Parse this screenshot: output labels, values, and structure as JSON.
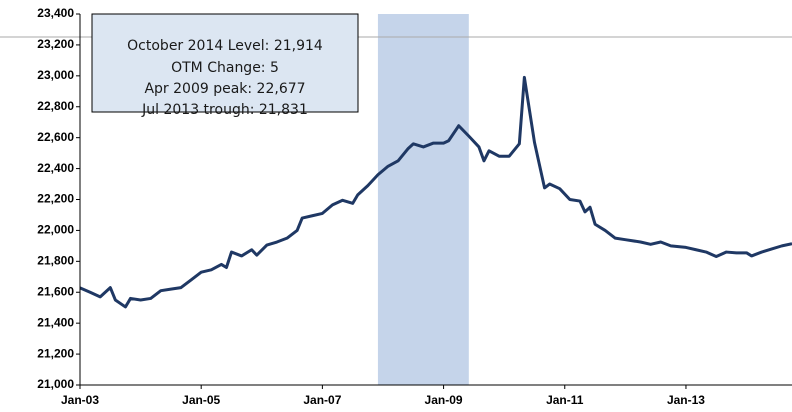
{
  "chart_data": {
    "type": "line",
    "annotations": [
      "October 2014 Level: 21,914",
      "OTM Change: 5",
      "Apr 2009 peak: 22,677",
      "Jul 2013 trough: 21,831"
    ],
    "x": [
      "2003-01",
      "2003-03",
      "2003-05",
      "2003-07",
      "2003-08",
      "2003-10",
      "2003-11",
      "2004-01",
      "2004-03",
      "2004-05",
      "2004-07",
      "2004-09",
      "2004-11",
      "2005-01",
      "2005-03",
      "2005-05",
      "2005-06",
      "2005-07",
      "2005-09",
      "2005-11",
      "2005-12",
      "2006-02",
      "2006-04",
      "2006-06",
      "2006-08",
      "2006-09",
      "2006-11",
      "2007-01",
      "2007-03",
      "2007-05",
      "2007-07",
      "2007-08",
      "2007-10",
      "2007-12",
      "2008-02",
      "2008-04",
      "2008-06",
      "2008-07",
      "2008-09",
      "2008-11",
      "2009-01",
      "2009-02",
      "2009-04",
      "2009-06",
      "2009-08",
      "2009-09",
      "2009-10",
      "2009-12",
      "2010-02",
      "2010-04",
      "2010-05",
      "2010-06",
      "2010-07",
      "2010-09",
      "2010-10",
      "2010-12",
      "2011-02",
      "2011-04",
      "2011-05",
      "2011-06",
      "2011-07",
      "2011-09",
      "2011-11",
      "2012-01",
      "2012-04",
      "2012-06",
      "2012-08",
      "2012-10",
      "2013-01",
      "2013-03",
      "2013-05",
      "2013-07",
      "2013-09",
      "2013-11",
      "2014-01",
      "2014-02",
      "2014-04",
      "2014-06",
      "2014-08",
      "2014-10"
    ],
    "series": [
      {
        "name": "Level",
        "color": "#1f3864",
        "values": [
          21628,
          21600,
          21570,
          21630,
          21550,
          21505,
          21560,
          21550,
          21560,
          21610,
          21620,
          21630,
          21680,
          21730,
          21745,
          21780,
          21760,
          21860,
          21835,
          21875,
          21840,
          21905,
          21925,
          21950,
          22000,
          22080,
          22095,
          22110,
          22165,
          22195,
          22175,
          22230,
          22290,
          22360,
          22415,
          22450,
          22530,
          22560,
          22540,
          22565,
          22565,
          22580,
          22677,
          22610,
          22540,
          22450,
          22515,
          22480,
          22480,
          22560,
          22990,
          22780,
          22570,
          22275,
          22300,
          22270,
          22200,
          22190,
          22120,
          22150,
          22040,
          22000,
          21950,
          21940,
          21925,
          21910,
          21925,
          21900,
          21890,
          21875,
          21860,
          21831,
          21860,
          21855,
          21855,
          21835,
          21860,
          21880,
          21900,
          21914
        ]
      }
    ],
    "shaded": [
      "2007-12",
      "2009-06"
    ],
    "shade_color": "#c5d4ea",
    "xlim": [
      "2003-01",
      "2014-10"
    ],
    "xticks": [
      {
        "value": "2003-01",
        "label": "Jan-03"
      },
      {
        "value": "2005-01",
        "label": "Jan-05"
      },
      {
        "value": "2007-01",
        "label": "Jan-07"
      },
      {
        "value": "2009-01",
        "label": "Jan-09"
      },
      {
        "value": "2011-01",
        "label": "Jan-11"
      },
      {
        "value": "2013-01",
        "label": "Jan-13"
      }
    ],
    "ylim": [
      21000,
      23400
    ],
    "yticks": [
      {
        "value": 21000,
        "label": "21,000"
      },
      {
        "value": 21200,
        "label": "21,200"
      },
      {
        "value": 21400,
        "label": "21,400"
      },
      {
        "value": 21600,
        "label": "21,600"
      },
      {
        "value": 21800,
        "label": "21,800"
      },
      {
        "value": 22000,
        "label": "22,000"
      },
      {
        "value": 22200,
        "label": "22,200"
      },
      {
        "value": 22400,
        "label": "22,400"
      },
      {
        "value": 22600,
        "label": "22,600"
      },
      {
        "value": 22800,
        "label": "22,800"
      },
      {
        "value": 23000,
        "label": "23,000"
      },
      {
        "value": 23200,
        "label": "23,200"
      },
      {
        "value": 23400,
        "label": "23,400"
      }
    ]
  }
}
